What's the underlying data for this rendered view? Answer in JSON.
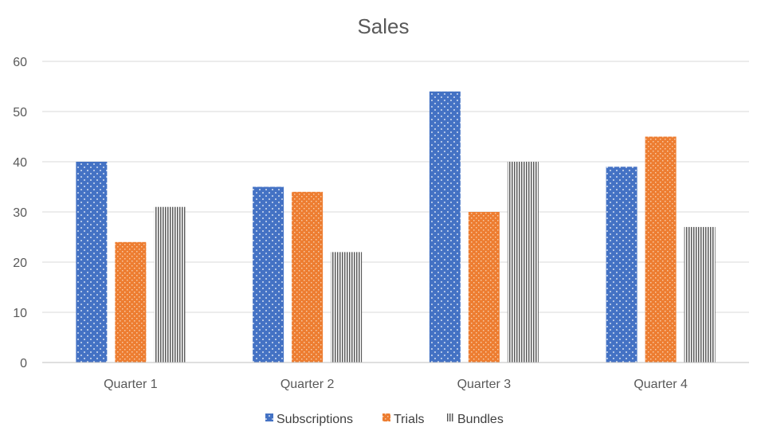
{
  "chart_data": {
    "type": "bar",
    "title": "Sales",
    "xlabel": "",
    "ylabel": "",
    "ylim": [
      0,
      60
    ],
    "yticks": [
      0,
      10,
      20,
      30,
      40,
      50,
      60
    ],
    "grid": true,
    "legend_position": "bottom",
    "categories": [
      "Quarter 1",
      "Quarter 2",
      "Quarter 3",
      "Quarter 4"
    ],
    "series": [
      {
        "name": "Subscriptions",
        "values": [
          40,
          35,
          54,
          39
        ],
        "color": "#4472c4",
        "pattern": "dots"
      },
      {
        "name": "Trials",
        "values": [
          24,
          34,
          30,
          45
        ],
        "color": "#ed7d31",
        "pattern": "checker"
      },
      {
        "name": "Bundles",
        "values": [
          31,
          22,
          40,
          27
        ],
        "color": "#595959",
        "pattern": "vertical-lines"
      }
    ]
  }
}
